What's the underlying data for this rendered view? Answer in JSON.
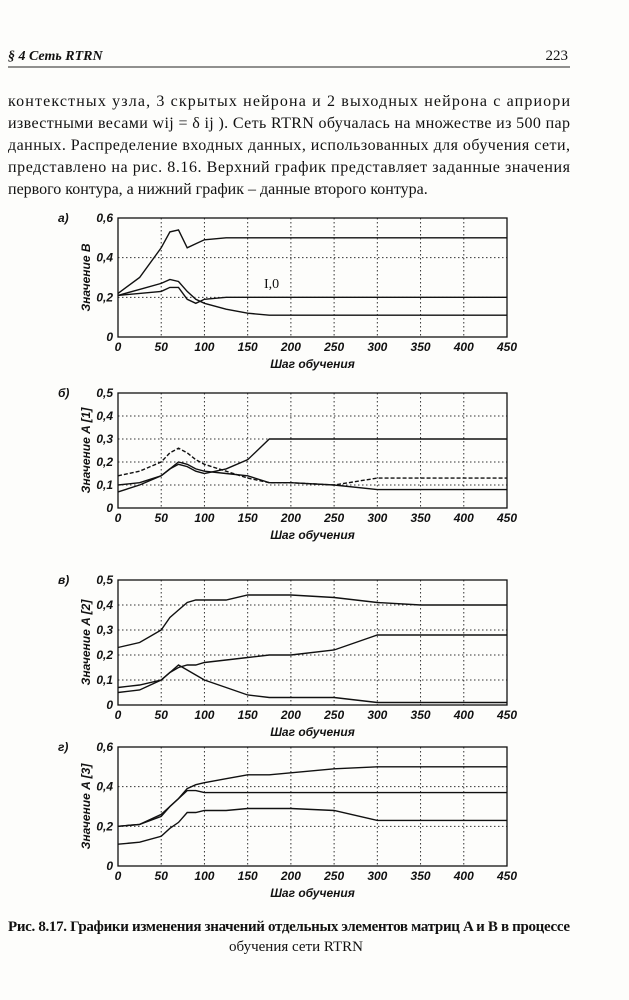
{
  "header": {
    "section": "§ 4 Сеть RTRN",
    "page_number": "223"
  },
  "paragraph": {
    "lines": [
      "контекстных узла, 3 скрытых нейрона и 2 выходных нейрона с априори",
      "известными весами wij = δ ij ). Сеть RTRN обучалась на множестве из 500 пар",
      "данных. Распределение входных данных, использованных для обучения сети,",
      "представлено на рис. 8.16. Верхний график представляет заданные значения",
      "первого контура, а нижний график – данные второго контура."
    ]
  },
  "chart_data": [
    {
      "type": "line",
      "panel_label": "а)",
      "ylabel": "Значение B",
      "xlabel": "Шаг обучения",
      "annotation": "I,0",
      "grid": true,
      "x": [
        0,
        25,
        50,
        60,
        70,
        80,
        90,
        100,
        125,
        150,
        175,
        200,
        250,
        300,
        350,
        400,
        450
      ],
      "xlim": [
        0,
        450
      ],
      "xticks": [
        0,
        50,
        100,
        150,
        200,
        250,
        300,
        350,
        400,
        450
      ],
      "ylim": [
        0,
        0.6
      ],
      "yticks": [
        0,
        {
          "value": 0.2,
          "label": "0,2"
        },
        {
          "value": 0.4,
          "label": "0,4"
        },
        {
          "value": 0.6,
          "label": "0,6"
        }
      ],
      "series": [
        {
          "color": "#111",
          "values": [
            0.22,
            0.3,
            0.45,
            0.53,
            0.54,
            0.45,
            0.47,
            0.49,
            0.5,
            0.5,
            0.5,
            0.5,
            0.5,
            0.5,
            0.5,
            0.5,
            0.5
          ]
        },
        {
          "color": "#111",
          "values": [
            0.21,
            0.24,
            0.27,
            0.29,
            0.28,
            0.23,
            0.19,
            0.17,
            0.14,
            0.12,
            0.11,
            0.11,
            0.11,
            0.11,
            0.11,
            0.11,
            0.11
          ]
        },
        {
          "color": "#111",
          "values": [
            0.21,
            0.22,
            0.23,
            0.25,
            0.25,
            0.19,
            0.17,
            0.19,
            0.2,
            0.2,
            0.2,
            0.2,
            0.2,
            0.2,
            0.2,
            0.2,
            0.2
          ]
        }
      ]
    },
    {
      "type": "line",
      "panel_label": "б)",
      "ylabel": "Значение A [1]",
      "xlabel": "Шаг обучения",
      "grid": true,
      "x": [
        0,
        25,
        50,
        60,
        70,
        80,
        90,
        100,
        125,
        150,
        175,
        200,
        250,
        300,
        350,
        400,
        450
      ],
      "xlim": [
        0,
        450
      ],
      "xticks": [
        0,
        50,
        100,
        150,
        200,
        250,
        300,
        350,
        400,
        450
      ],
      "ylim": [
        0,
        0.5
      ],
      "yticks": [
        0,
        {
          "value": 0.1,
          "label": "0,1"
        },
        {
          "value": 0.2,
          "label": "0,2"
        },
        {
          "value": 0.3,
          "label": "0,3"
        },
        {
          "value": 0.4,
          "label": "0,4"
        },
        {
          "value": 0.5,
          "label": "0,5"
        }
      ],
      "series": [
        {
          "color": "#111",
          "dashed": true,
          "values": [
            0.14,
            0.16,
            0.2,
            0.24,
            0.26,
            0.24,
            0.21,
            0.19,
            0.16,
            0.13,
            0.11,
            0.11,
            0.1,
            0.13,
            0.13,
            0.13,
            0.13
          ]
        },
        {
          "color": "#111",
          "values": [
            0.07,
            0.1,
            0.14,
            0.17,
            0.19,
            0.18,
            0.16,
            0.15,
            0.17,
            0.21,
            0.3,
            0.3,
            0.3,
            0.3,
            0.3,
            0.3,
            0.3
          ]
        },
        {
          "color": "#111",
          "values": [
            0.1,
            0.11,
            0.14,
            0.17,
            0.2,
            0.19,
            0.17,
            0.16,
            0.15,
            0.14,
            0.11,
            0.11,
            0.1,
            0.08,
            0.08,
            0.08,
            0.08
          ]
        }
      ]
    },
    {
      "type": "line",
      "panel_label": "в)",
      "ylabel": "Значение A [2]",
      "xlabel": "Шаг обучения",
      "grid": true,
      "x": [
        0,
        25,
        50,
        60,
        70,
        80,
        90,
        100,
        125,
        150,
        175,
        200,
        250,
        300,
        350,
        400,
        450
      ],
      "xlim": [
        0,
        450
      ],
      "xticks": [
        0,
        50,
        100,
        150,
        200,
        250,
        300,
        350,
        400,
        450
      ],
      "ylim": [
        0,
        0.5
      ],
      "yticks": [
        0,
        {
          "value": 0.1,
          "label": "0,1"
        },
        {
          "value": 0.2,
          "label": "0,2"
        },
        {
          "value": 0.3,
          "label": "0,3"
        },
        {
          "value": 0.4,
          "label": "0,4"
        },
        {
          "value": 0.5,
          "label": "0,5"
        }
      ],
      "series": [
        {
          "color": "#111",
          "values": [
            0.23,
            0.25,
            0.3,
            0.35,
            0.38,
            0.41,
            0.42,
            0.42,
            0.42,
            0.44,
            0.44,
            0.44,
            0.43,
            0.41,
            0.4,
            0.4,
            0.4
          ]
        },
        {
          "color": "#111",
          "values": [
            0.07,
            0.08,
            0.1,
            0.13,
            0.15,
            0.16,
            0.16,
            0.17,
            0.18,
            0.19,
            0.2,
            0.2,
            0.22,
            0.28,
            0.28,
            0.28,
            0.28
          ]
        },
        {
          "color": "#111",
          "values": [
            0.05,
            0.06,
            0.1,
            0.13,
            0.16,
            0.14,
            0.12,
            0.1,
            0.07,
            0.04,
            0.03,
            0.03,
            0.03,
            0.01,
            0.01,
            0.01,
            0.01
          ]
        }
      ]
    },
    {
      "type": "line",
      "panel_label": "г)",
      "ylabel": "Значение A [3]",
      "xlabel": "Шаг обучения",
      "grid": true,
      "x": [
        0,
        25,
        50,
        60,
        70,
        80,
        90,
        100,
        125,
        150,
        175,
        200,
        250,
        300,
        350,
        400,
        450
      ],
      "xlim": [
        0,
        450
      ],
      "xticks": [
        0,
        50,
        100,
        150,
        200,
        250,
        300,
        350,
        400,
        450
      ],
      "ylim": [
        0,
        0.6
      ],
      "yticks": [
        0,
        {
          "value": 0.2,
          "label": "0,2"
        },
        {
          "value": 0.4,
          "label": "0,4"
        },
        {
          "value": 0.6,
          "label": "0,6"
        }
      ],
      "series": [
        {
          "color": "#111",
          "values": [
            0.2,
            0.21,
            0.26,
            0.3,
            0.34,
            0.39,
            0.41,
            0.42,
            0.44,
            0.46,
            0.46,
            0.47,
            0.49,
            0.5,
            0.5,
            0.5,
            0.5
          ]
        },
        {
          "color": "#111",
          "values": [
            0.2,
            0.21,
            0.25,
            0.3,
            0.34,
            0.38,
            0.38,
            0.37,
            0.37,
            0.37,
            0.37,
            0.37,
            0.37,
            0.37,
            0.37,
            0.37,
            0.37
          ]
        },
        {
          "color": "#111",
          "values": [
            0.11,
            0.12,
            0.15,
            0.19,
            0.22,
            0.27,
            0.27,
            0.28,
            0.28,
            0.29,
            0.29,
            0.29,
            0.28,
            0.23,
            0.23,
            0.23,
            0.23
          ]
        }
      ]
    }
  ],
  "caption": {
    "lines": [
      "Рис. 8.17. Графики изменения значений отдельных элементов матриц A и B в процессе",
      "обучения сети RTRN"
    ]
  }
}
